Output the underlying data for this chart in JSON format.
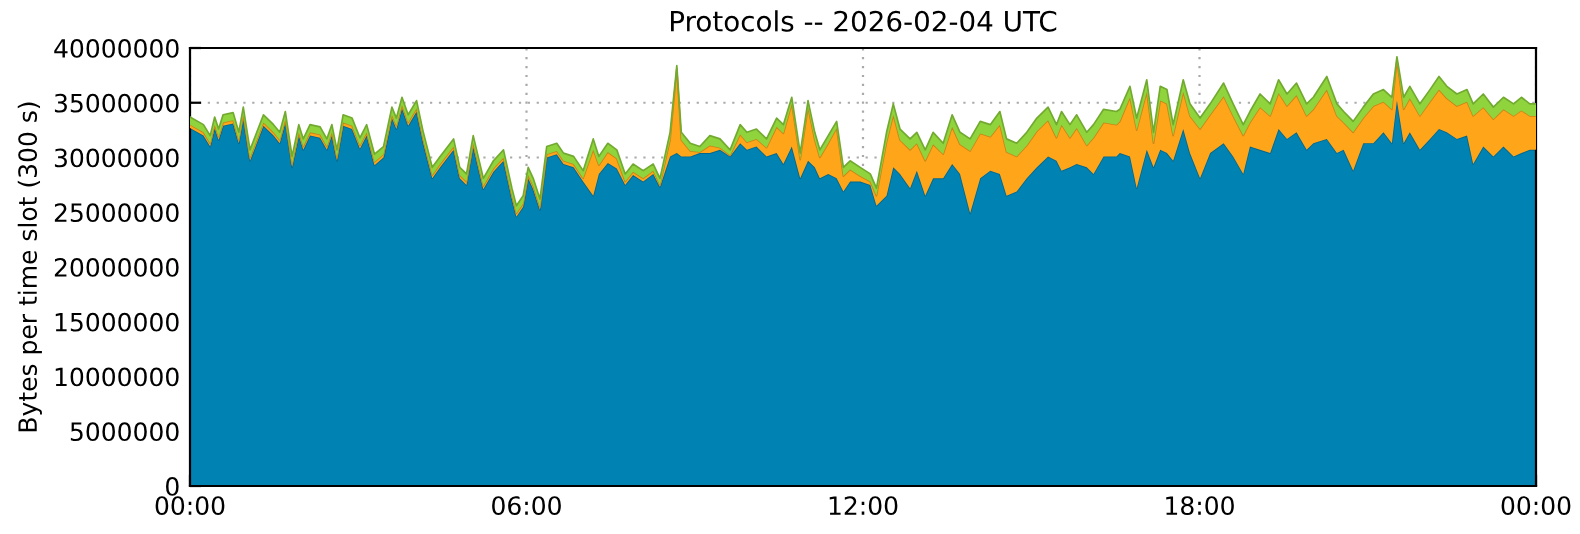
{
  "chart_data": {
    "type": "area",
    "stacked": true,
    "title": "Protocols -- 2026-02-04 UTC",
    "ylabel": "Bytes per time slot (300 s)",
    "x": [
      0,
      0.24,
      0.36,
      0.44,
      0.51,
      0.59,
      0.77,
      0.87,
      0.95,
      1.07,
      1.19,
      1.31,
      1.49,
      1.6,
      1.7,
      1.82,
      1.94,
      2.02,
      2.14,
      2.32,
      2.44,
      2.53,
      2.62,
      2.73,
      2.89,
      3.03,
      3.15,
      3.29,
      3.45,
      3.6,
      3.68,
      3.78,
      3.89,
      4.04,
      4.16,
      4.32,
      4.46,
      4.7,
      4.81,
      4.93,
      5.05,
      5.23,
      5.41,
      5.59,
      5.74,
      5.82,
      5.94,
      6.03,
      6.12,
      6.24,
      6.36,
      6.54,
      6.66,
      6.84,
      7.01,
      7.19,
      7.29,
      7.45,
      7.61,
      7.76,
      7.9,
      8.08,
      8.26,
      8.38,
      8.56,
      8.68,
      8.76,
      8.92,
      9.09,
      9.27,
      9.45,
      9.63,
      9.81,
      9.93,
      10.1,
      10.28,
      10.46,
      10.58,
      10.73,
      10.88,
      11.02,
      11.14,
      11.23,
      11.38,
      11.53,
      11.65,
      11.77,
      11.95,
      12.13,
      12.24,
      12.42,
      12.54,
      12.66,
      12.84,
      12.96,
      13.11,
      13.25,
      13.43,
      13.59,
      13.73,
      13.91,
      14.09,
      14.27,
      14.44,
      14.56,
      14.74,
      14.92,
      15.1,
      15.3,
      15.45,
      15.54,
      15.69,
      15.81,
      15.99,
      16.11,
      16.29,
      16.52,
      16.58,
      16.76,
      16.88,
      17.06,
      17.18,
      17.3,
      17.42,
      17.53,
      17.71,
      17.83,
      18.01,
      18.19,
      18.43,
      18.6,
      18.78,
      18.9,
      19.08,
      19.26,
      19.41,
      19.56,
      19.73,
      19.91,
      20.03,
      20.27,
      20.45,
      20.57,
      20.74,
      20.92,
      21.1,
      21.28,
      21.43,
      21.52,
      21.64,
      21.75,
      21.93,
      22.11,
      22.27,
      22.41,
      22.59,
      22.77,
      22.88,
      23.06,
      23.24,
      23.42,
      23.6,
      23.74,
      23.89,
      24
    ],
    "series": [
      {
        "color": "#0082b2",
        "values": [
          32700000,
          32000000,
          31000000,
          32700000,
          31600000,
          32900000,
          33100000,
          31300000,
          33600000,
          29700000,
          31300000,
          32900000,
          32000000,
          31300000,
          33200000,
          29100000,
          32000000,
          30700000,
          32000000,
          31800000,
          30700000,
          32000000,
          29700000,
          32900000,
          32600000,
          30800000,
          32000000,
          29300000,
          30000000,
          33600000,
          32600000,
          34500000,
          32900000,
          34200000,
          31300000,
          28100000,
          29100000,
          30700000,
          28100000,
          27500000,
          31000000,
          27100000,
          28700000,
          29700000,
          26200000,
          24600000,
          25500000,
          28100000,
          27100000,
          25200000,
          30000000,
          30300000,
          29400000,
          29100000,
          27800000,
          26500000,
          28500000,
          29500000,
          29000000,
          27500000,
          28400000,
          27800000,
          28500000,
          27300000,
          30100000,
          30400000,
          30100000,
          30100000,
          30400000,
          30400000,
          30700000,
          30100000,
          31300000,
          30700000,
          31000000,
          30100000,
          30400000,
          29400000,
          31000000,
          28100000,
          29700000,
          29100000,
          28100000,
          28500000,
          28100000,
          26900000,
          27800000,
          27800000,
          27500000,
          25600000,
          26500000,
          29100000,
          28500000,
          27200000,
          28800000,
          26500000,
          28100000,
          28100000,
          29400000,
          28500000,
          24900000,
          28100000,
          28800000,
          28500000,
          26500000,
          26900000,
          28100000,
          29100000,
          30100000,
          29700000,
          28800000,
          29100000,
          29400000,
          29100000,
          28500000,
          30100000,
          30100000,
          30400000,
          30100000,
          27200000,
          30700000,
          29100000,
          30700000,
          30400000,
          29700000,
          32600000,
          30400000,
          28100000,
          30400000,
          31300000,
          30100000,
          28500000,
          31000000,
          30700000,
          30400000,
          32600000,
          31700000,
          32300000,
          30700000,
          31300000,
          31700000,
          30400000,
          30700000,
          28800000,
          31300000,
          31300000,
          32300000,
          31300000,
          35200000,
          31300000,
          32300000,
          30700000,
          31700000,
          32600000,
          32300000,
          31700000,
          32000000,
          29400000,
          31000000,
          30100000,
          31000000,
          30100000,
          30400000,
          30700000,
          30700000
        ]
      },
      {
        "color": "#ffa51a",
        "values": [
          300000,
          300000,
          300000,
          300000,
          300000,
          300000,
          300000,
          300000,
          300000,
          300000,
          300000,
          300000,
          300000,
          300000,
          300000,
          300000,
          300000,
          300000,
          300000,
          300000,
          300000,
          300000,
          300000,
          300000,
          300000,
          300000,
          300000,
          300000,
          300000,
          300000,
          300000,
          300000,
          300000,
          300000,
          300000,
          300000,
          300000,
          300000,
          300000,
          300000,
          300000,
          300000,
          300000,
          300000,
          300000,
          300000,
          300000,
          300000,
          300000,
          300000,
          300000,
          300000,
          300000,
          300000,
          300000,
          4200000,
          800000,
          1000000,
          900000,
          300000,
          300000,
          300000,
          300000,
          200000,
          1500000,
          7700000,
          1500000,
          500000,
          100000,
          700000,
          200000,
          100000,
          800000,
          700000,
          700000,
          800000,
          2400000,
          2800000,
          3900000,
          1700000,
          4900000,
          2500000,
          1900000,
          2800000,
          4600000,
          1400000,
          1100000,
          500000,
          300000,
          900000,
          4900000,
          4800000,
          3100000,
          3500000,
          2500000,
          3200000,
          3100000,
          2200000,
          3400000,
          2700000,
          5700000,
          4100000,
          3100000,
          4500000,
          4000000,
          3200000,
          3000000,
          3300000,
          3300000,
          2100000,
          4200000,
          2700000,
          3300000,
          2000000,
          3300000,
          3100000,
          2900000,
          2900000,
          5400000,
          5300000,
          5300000,
          2200000,
          4500000,
          4500000,
          2300000,
          3400000,
          3400000,
          4500000,
          3500000,
          4300000,
          3700000,
          3500000,
          2200000,
          3900000,
          3400000,
          3300000,
          3000000,
          3400000,
          3100000,
          3100000,
          4500000,
          3400000,
          2500000,
          3500000,
          2300000,
          3400000,
          2800000,
          3100000,
          3700000,
          3100000,
          3100000,
          3100000,
          3400000,
          3600000,
          3100000,
          3000000,
          3100000,
          4400000,
          3600000,
          3400000,
          3400000,
          3700000,
          3900000,
          3100000,
          3100000
        ]
      },
      {
        "color": "#8fd43c",
        "values": [
          700000,
          700000,
          700000,
          700000,
          700000,
          700000,
          700000,
          700000,
          700000,
          700000,
          700000,
          700000,
          700000,
          700000,
          700000,
          700000,
          700000,
          700000,
          700000,
          700000,
          700000,
          700000,
          700000,
          700000,
          700000,
          700000,
          700000,
          700000,
          700000,
          700000,
          700000,
          700000,
          700000,
          700000,
          700000,
          700000,
          700000,
          700000,
          700000,
          700000,
          700000,
          700000,
          700000,
          700000,
          700000,
          700000,
          700000,
          700000,
          700000,
          700000,
          700000,
          700000,
          700000,
          700000,
          700000,
          1000000,
          800000,
          800000,
          800000,
          700000,
          700000,
          700000,
          600000,
          600000,
          700000,
          300000,
          700000,
          700000,
          500000,
          900000,
          800000,
          500000,
          900000,
          900000,
          900000,
          800000,
          800000,
          800000,
          600000,
          600000,
          600000,
          700000,
          700000,
          700000,
          600000,
          800000,
          800000,
          800000,
          700000,
          700000,
          900000,
          1000000,
          1000000,
          1000000,
          1000000,
          1000000,
          1100000,
          1000000,
          1100000,
          1100000,
          1100000,
          1100000,
          1100000,
          1200000,
          1200000,
          1200000,
          1200000,
          1200000,
          1200000,
          1200000,
          1200000,
          1200000,
          1200000,
          1200000,
          1200000,
          1200000,
          1200000,
          1100000,
          1000000,
          1100000,
          1100000,
          1000000,
          1300000,
          1300000,
          1000000,
          1100000,
          1100000,
          1000000,
          1000000,
          1200000,
          1100000,
          1000000,
          1000000,
          1200000,
          1100000,
          1200000,
          1100000,
          1100000,
          1100000,
          1100000,
          1200000,
          1100000,
          1000000,
          1000000,
          1000000,
          1100000,
          1100000,
          1100000,
          300000,
          1100000,
          1100000,
          1100000,
          1100000,
          1200000,
          1100000,
          1100000,
          1100000,
          1100000,
          1200000,
          1100000,
          1100000,
          1100000,
          1200000,
          1100000,
          1100000
        ]
      }
    ],
    "xlim": [
      0,
      24
    ],
    "xticks": [
      {
        "value": 0,
        "label": "00:00"
      },
      {
        "value": 6,
        "label": "06:00"
      },
      {
        "value": 12,
        "label": "12:00"
      },
      {
        "value": 18,
        "label": "18:00"
      },
      {
        "value": 24,
        "label": "00:00"
      }
    ],
    "ylim": [
      0,
      40000000
    ],
    "yticks": [
      0,
      5000000,
      10000000,
      15000000,
      20000000,
      25000000,
      30000000,
      35000000,
      40000000
    ],
    "grid": true
  }
}
